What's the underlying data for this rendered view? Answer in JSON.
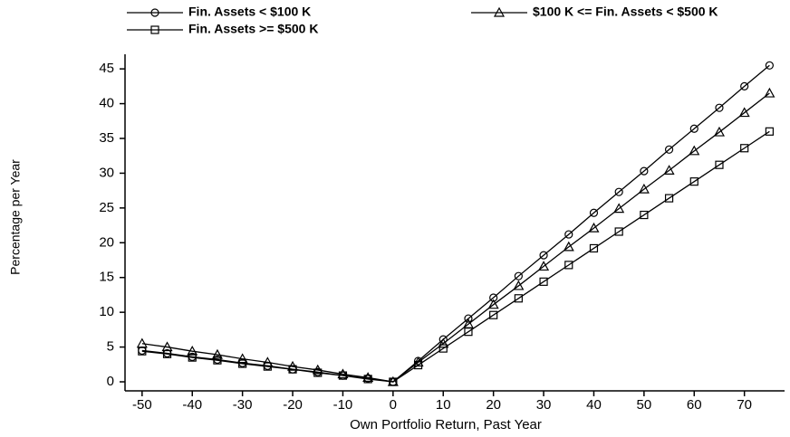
{
  "chart_data": {
    "type": "line",
    "xlabel": "Own Portfolio Return, Past Year",
    "ylabel": "Percentage per Year",
    "x": [
      -50,
      -45,
      -40,
      -35,
      -30,
      -25,
      -20,
      -15,
      -10,
      -5,
      0,
      5,
      10,
      15,
      20,
      25,
      30,
      35,
      40,
      45,
      50,
      55,
      60,
      65,
      70,
      75
    ],
    "series": [
      {
        "name": "Fin. Assets < $100 K",
        "color": "#000000",
        "marker": "circle",
        "values": [
          4.5,
          4.1,
          3.6,
          3.2,
          2.7,
          2.3,
          1.8,
          1.4,
          0.9,
          0.5,
          0,
          3.0,
          6.1,
          9.1,
          12.1,
          15.2,
          18.2,
          21.2,
          24.3,
          27.3,
          30.3,
          33.4,
          36.4,
          39.4,
          42.5,
          45.5
        ]
      },
      {
        "name": "$100 K <= Fin. Assets < $500 K",
        "color": "#000000",
        "marker": "triangle",
        "values": [
          5.5,
          5.0,
          4.4,
          3.9,
          3.3,
          2.8,
          2.2,
          1.7,
          1.1,
          0.6,
          0,
          2.8,
          5.5,
          8.3,
          11.1,
          13.8,
          16.6,
          19.4,
          22.1,
          24.9,
          27.7,
          30.4,
          33.2,
          35.9,
          38.7,
          41.5
        ]
      },
      {
        "name": "Fin. Assets >= $500 K",
        "color": "#000000",
        "marker": "square",
        "values": [
          4.4,
          4.0,
          3.5,
          3.1,
          2.6,
          2.2,
          1.8,
          1.3,
          0.9,
          0.4,
          0,
          2.4,
          4.8,
          7.2,
          9.6,
          12.0,
          14.4,
          16.8,
          19.2,
          21.6,
          24.0,
          26.4,
          28.8,
          31.2,
          33.6,
          36.0
        ]
      }
    ],
    "xlim": [
      -53.4,
      78
    ],
    "xticks": [
      -50,
      -40,
      -30,
      -20,
      -10,
      0,
      10,
      20,
      30,
      40,
      50,
      60,
      70
    ],
    "ylim": [
      -1.3,
      47.1
    ],
    "yticks": [
      0,
      5,
      10,
      15,
      20,
      25,
      30,
      35,
      40,
      45
    ],
    "grid": false,
    "legend_position": "top"
  }
}
